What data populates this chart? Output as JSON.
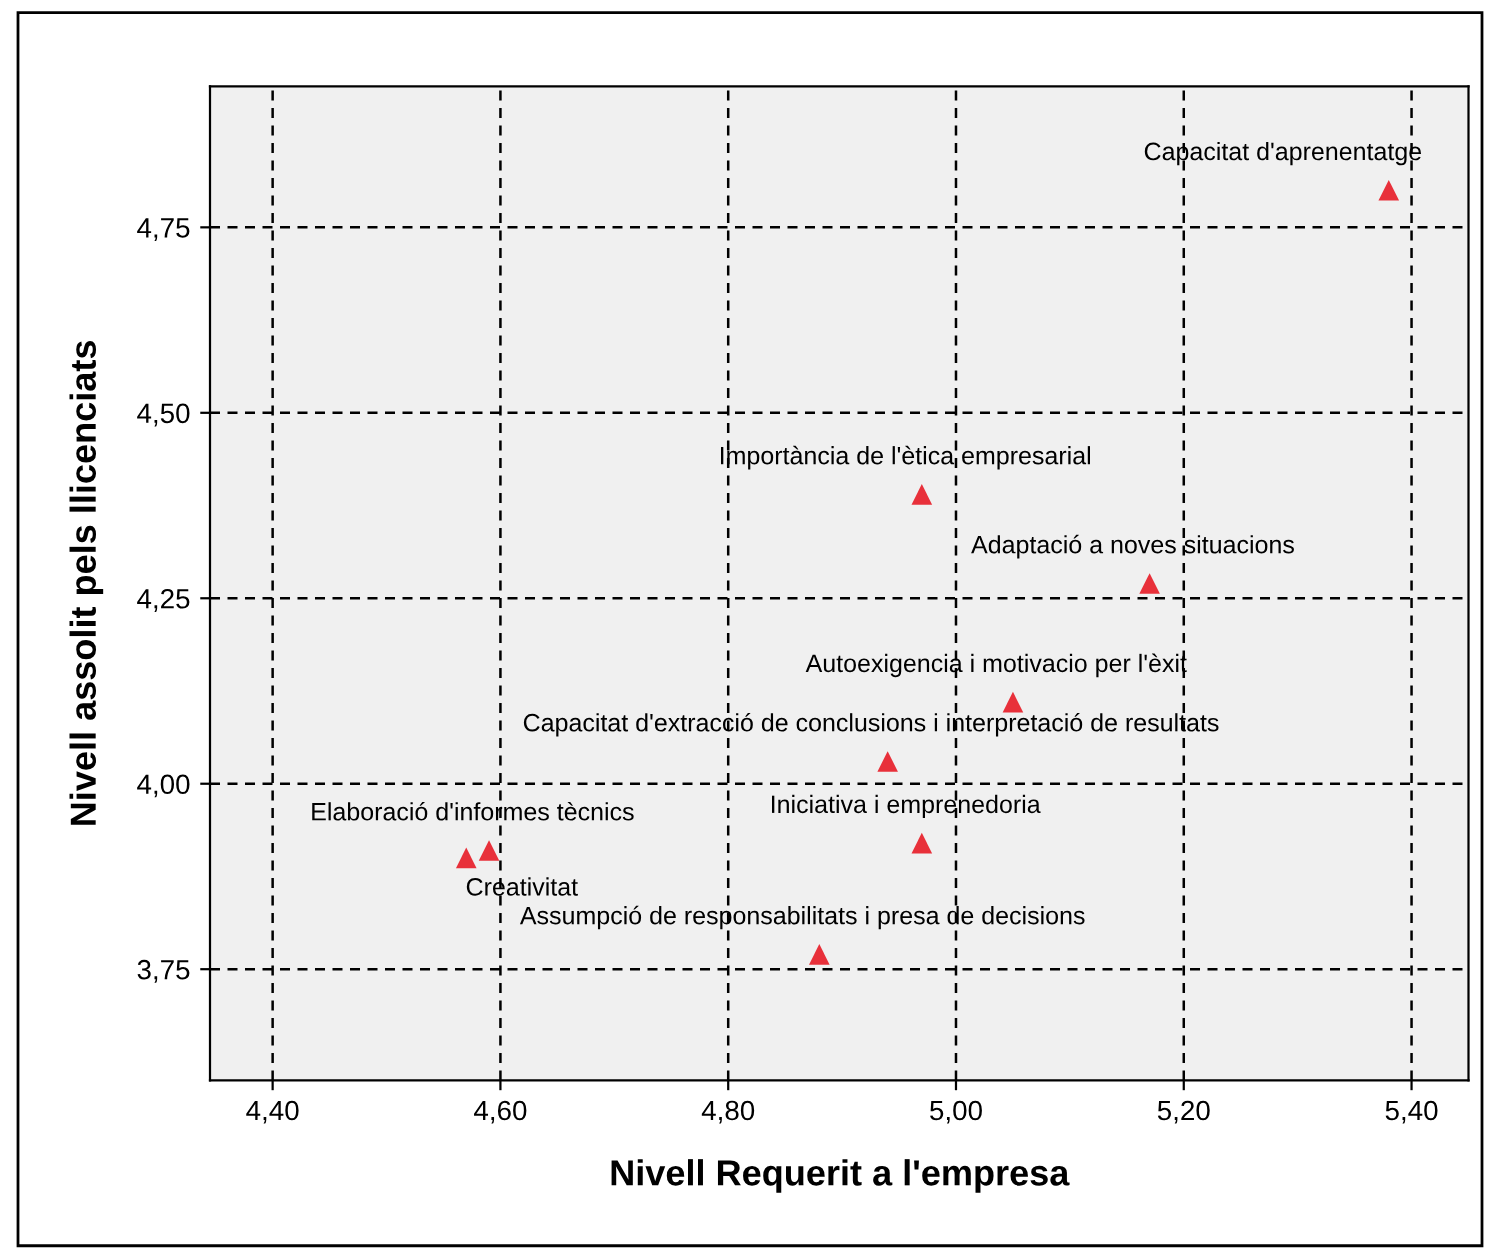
{
  "chart_data": {
    "type": "scatter",
    "xlabel": "Nivell Requerit a l'empresa",
    "ylabel": "Nivell assolit pels llicenciats",
    "x": [
      5.38,
      4.97,
      5.17,
      5.05,
      4.94,
      4.97,
      4.59,
      4.57,
      4.88
    ],
    "series": [
      {
        "color": "#e8303a",
        "values": [
          4.8,
          4.39,
          4.27,
          4.11,
          4.03,
          3.92,
          3.91,
          3.9,
          3.77
        ]
      }
    ],
    "marker": "triangle",
    "grid": true,
    "legend": false,
    "xlim": [
      4.345,
      5.45
    ],
    "ylim": [
      3.6,
      4.94
    ],
    "xticks": [
      {
        "value": 4.4,
        "label": "4,40"
      },
      {
        "value": 4.6,
        "label": "4,60"
      },
      {
        "value": 4.8,
        "label": "4,80"
      },
      {
        "value": 5.0,
        "label": "5,00"
      },
      {
        "value": 5.2,
        "label": "5,20"
      },
      {
        "value": 5.4,
        "label": "5,40"
      }
    ],
    "yticks": [
      {
        "value": 3.75,
        "label": "3,75"
      },
      {
        "value": 4.0,
        "label": "4,00"
      },
      {
        "value": 4.25,
        "label": "4,25"
      },
      {
        "value": 4.5,
        "label": "4,50"
      },
      {
        "value": 4.75,
        "label": "4,75"
      }
    ],
    "annotations": [
      {
        "text": "Capacitat d'aprenentatge",
        "x": 5.38,
        "y": 4.8
      },
      {
        "text": "Importància de l'ètica empresarial",
        "x": 4.97,
        "y": 4.39
      },
      {
        "text": "Adaptació a noves situacions",
        "x": 5.17,
        "y": 4.27
      },
      {
        "text": "Autoexigencia i motivacio per l'èxit",
        "x": 5.05,
        "y": 4.11
      },
      {
        "text": "Capacitat d'extracció de conclusions i interpretació de resultats",
        "x": 4.94,
        "y": 4.03
      },
      {
        "text": "Iniciativa i emprenedoria",
        "x": 4.97,
        "y": 3.92
      },
      {
        "text": "Elaboració d'informes tècnics",
        "x": 4.59,
        "y": 3.91
      },
      {
        "text": "Creativitat",
        "x": 4.57,
        "y": 3.9
      },
      {
        "text": "Assumpció de responsabilitats i presa de decisions",
        "x": 4.88,
        "y": 3.77
      }
    ]
  }
}
